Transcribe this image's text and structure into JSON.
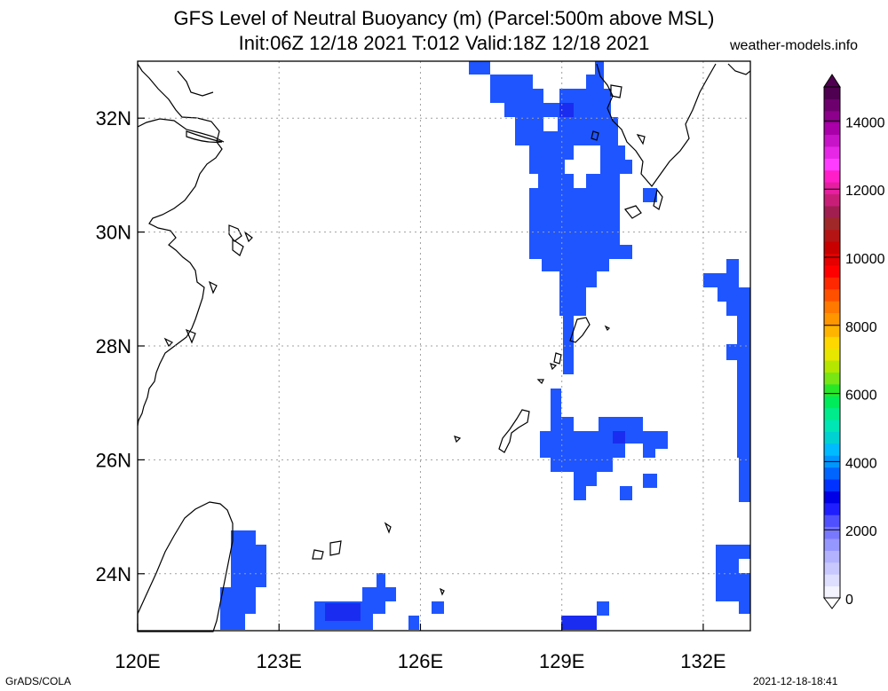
{
  "header": {
    "title_line1": "GFS Level of Neutral Buoyancy (m) (Parcel:500m above MSL)",
    "title_line2": "Init:06Z 12/18 2021 T:012 Valid:18Z 12/18 2021",
    "site": "weather-models.info"
  },
  "map": {
    "lon_range": [
      120,
      133
    ],
    "lat_range": [
      23,
      33
    ],
    "x_ticks": [
      {
        "value": 120,
        "label": "120E"
      },
      {
        "value": 123,
        "label": "123E"
      },
      {
        "value": 126,
        "label": "126E"
      },
      {
        "value": 129,
        "label": "129E"
      },
      {
        "value": 132,
        "label": "132E"
      }
    ],
    "y_ticks": [
      {
        "value": 24,
        "label": "24N"
      },
      {
        "value": 26,
        "label": "26N"
      },
      {
        "value": 28,
        "label": "28N"
      },
      {
        "value": 30,
        "label": "30N"
      },
      {
        "value": 32,
        "label": "32N"
      }
    ],
    "grid": true,
    "fill_color": "#1f55ff",
    "dark_fill_color": "#1a2cf0"
  },
  "colorbar": {
    "labels": [
      {
        "value": 0,
        "label": "0"
      },
      {
        "value": 2000,
        "label": "2000"
      },
      {
        "value": 4000,
        "label": "4000"
      },
      {
        "value": 6000,
        "label": "6000"
      },
      {
        "value": 8000,
        "label": "8000"
      },
      {
        "value": 10000,
        "label": "10000"
      },
      {
        "value": 12000,
        "label": "12000"
      },
      {
        "value": 14000,
        "label": "14000"
      }
    ],
    "range": [
      0,
      15000
    ],
    "colors": [
      "#f4f4ff",
      "#dedeff",
      "#c8c8ff",
      "#b2b2ff",
      "#9696ff",
      "#7878ff",
      "#5050ff",
      "#1e1eff",
      "#0000e6",
      "#0032ff",
      "#0064ff",
      "#0096ff",
      "#00bbff",
      "#00d2d2",
      "#00e6b4",
      "#00eb8c",
      "#00eb5a",
      "#28e628",
      "#78e614",
      "#b4e600",
      "#e6e600",
      "#ffd700",
      "#ffb400",
      "#ff9600",
      "#ff7800",
      "#ff5000",
      "#ff2800",
      "#ff0000",
      "#e60000",
      "#c80000",
      "#b41414",
      "#a02828",
      "#a01e50",
      "#c81e78",
      "#e61ea0",
      "#ff1ec8",
      "#ff3cff",
      "#e628e6",
      "#c814c8",
      "#aa00aa",
      "#8c008c",
      "#6e006e",
      "#500050"
    ]
  },
  "footer": {
    "credit": "GrADS/COLA",
    "timestamp": "2021-12-18-18:41"
  }
}
